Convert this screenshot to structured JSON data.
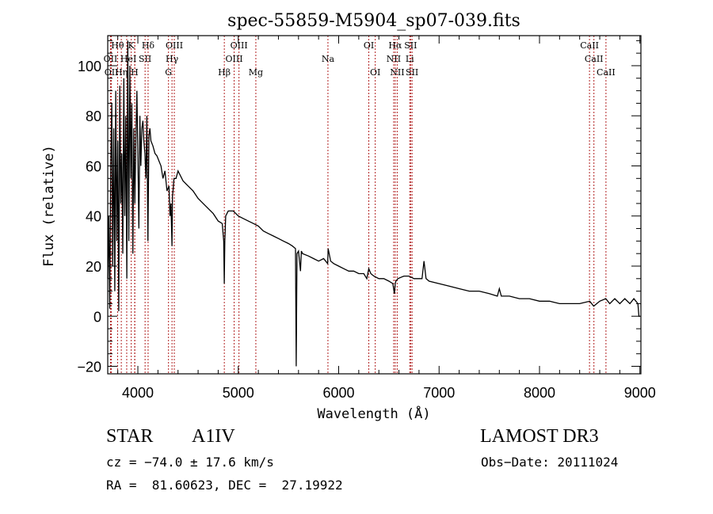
{
  "chart_data": {
    "type": "line",
    "title": "spec-55859-M5904_sp07-039.fits",
    "xlabel": "Wavelength (Å)",
    "ylabel": "Flux (relative)",
    "xlim": [
      3700,
      9010
    ],
    "ylim": [
      -23,
      112
    ],
    "xticks": [
      4000,
      5000,
      6000,
      7000,
      8000,
      9000
    ],
    "yticks": [
      -20,
      0,
      20,
      40,
      60,
      80,
      100
    ],
    "grid": false,
    "series": [
      {
        "name": "spectrum",
        "color": "#000000",
        "x": [
          3700,
          3710,
          3720,
          3730,
          3740,
          3750,
          3760,
          3770,
          3780,
          3790,
          3800,
          3810,
          3820,
          3830,
          3840,
          3850,
          3860,
          3870,
          3880,
          3890,
          3900,
          3910,
          3920,
          3930,
          3940,
          3950,
          3960,
          3970,
          3980,
          3990,
          4000,
          4010,
          4020,
          4030,
          4040,
          4050,
          4060,
          4070,
          4080,
          4090,
          4100,
          4110,
          4120,
          4130,
          4150,
          4170,
          4190,
          4210,
          4230,
          4250,
          4270,
          4290,
          4310,
          4320,
          4330,
          4340,
          4345,
          4350,
          4360,
          4380,
          4400,
          4450,
          4500,
          4550,
          4600,
          4650,
          4700,
          4750,
          4800,
          4840,
          4855,
          4861,
          4866,
          4875,
          4900,
          4950,
          5000,
          5050,
          5100,
          5150,
          5200,
          5250,
          5300,
          5350,
          5400,
          5450,
          5500,
          5540,
          5570,
          5577,
          5585,
          5600,
          5620,
          5628,
          5640,
          5700,
          5750,
          5800,
          5850,
          5890,
          5895,
          5920,
          5950,
          6000,
          6050,
          6100,
          6150,
          6200,
          6250,
          6280,
          6300,
          6320,
          6350,
          6400,
          6450,
          6500,
          6540,
          6555,
          6563,
          6570,
          6590,
          6650,
          6700,
          6750,
          6800,
          6830,
          6850,
          6870,
          6900,
          7000,
          7100,
          7200,
          7300,
          7400,
          7500,
          7580,
          7600,
          7620,
          7700,
          7800,
          7900,
          8000,
          8100,
          8200,
          8300,
          8400,
          8500,
          8540,
          8600,
          8660,
          8700,
          8750,
          8800,
          8850,
          8900,
          8940,
          8960,
          8980,
          8990,
          9000
        ],
        "y": [
          15,
          40,
          3,
          60,
          85,
          20,
          75,
          10,
          90,
          30,
          70,
          2,
          92,
          45,
          65,
          25,
          95,
          40,
          80,
          15,
          110,
          30,
          100,
          55,
          85,
          25,
          75,
          45,
          70,
          90,
          65,
          35,
          80,
          60,
          75,
          78,
          70,
          65,
          55,
          80,
          30,
          72,
          75,
          70,
          68,
          65,
          64,
          62,
          60,
          55,
          58,
          50,
          52,
          40,
          45,
          28,
          48,
          50,
          55,
          55,
          58,
          54,
          52,
          50,
          47,
          45,
          43,
          41,
          38,
          37,
          30,
          13,
          30,
          40,
          42,
          42,
          40,
          39,
          38,
          37,
          36,
          34,
          33,
          32,
          31,
          30,
          29,
          28,
          27,
          -20,
          25,
          26,
          18,
          26,
          25,
          24,
          23,
          22,
          23,
          21,
          27,
          22,
          21,
          20,
          19,
          18,
          18,
          17,
          17,
          15,
          19,
          17,
          16,
          15,
          15,
          14,
          13,
          9,
          13,
          14,
          15,
          16,
          16,
          15,
          15,
          15,
          22,
          15,
          14,
          13,
          12,
          11,
          10,
          10,
          9,
          8,
          11,
          8,
          8,
          7,
          7,
          6,
          6,
          5,
          5,
          5,
          6,
          4,
          6,
          7,
          5,
          7,
          5,
          7,
          5,
          7,
          6,
          5,
          0,
          0
        ]
      }
    ],
    "line_markers": {
      "color": "#b22222",
      "style": "dotted",
      "items": [
        {
          "label": "Hθ",
          "wavelength": 3798,
          "row": 1
        },
        {
          "label": "K",
          "wavelength": 3934,
          "row": 1
        },
        {
          "label": "Hδ",
          "wavelength": 4102,
          "row": 1
        },
        {
          "label": "OIII",
          "wavelength": 4363,
          "row": 1
        },
        {
          "label": "OIII",
          "wavelength": 5007,
          "row": 1
        },
        {
          "label": "OI",
          "wavelength": 6300,
          "row": 1
        },
        {
          "label": "Hα",
          "wavelength": 6563,
          "row": 1
        },
        {
          "label": "SII",
          "wavelength": 6717,
          "row": 1
        },
        {
          "label": "CaII",
          "wavelength": 8498,
          "row": 1
        },
        {
          "label": "OII",
          "wavelength": 3727,
          "row": 2
        },
        {
          "label": "He",
          "wavelength": 3889,
          "row": 2
        },
        {
          "label": "I",
          "wavelength": 3970,
          "row": 2
        },
        {
          "label": "SII",
          "wavelength": 4072,
          "row": 2
        },
        {
          "label": "Hγ",
          "wavelength": 4340,
          "row": 2
        },
        {
          "label": "OIII",
          "wavelength": 4959,
          "row": 2
        },
        {
          "label": "Na",
          "wavelength": 5893,
          "row": 2
        },
        {
          "label": "NII",
          "wavelength": 6548,
          "row": 2
        },
        {
          "label": "Li",
          "wavelength": 6708,
          "row": 2
        },
        {
          "label": "CaII",
          "wavelength": 8542,
          "row": 2
        },
        {
          "label": "OII",
          "wavelength": 3736,
          "row": 3
        },
        {
          "label": "Hη",
          "wavelength": 3835,
          "row": 3
        },
        {
          "label": "H",
          "wavelength": 3968,
          "row": 3
        },
        {
          "label": "G",
          "wavelength": 4305,
          "row": 3
        },
        {
          "label": "Hβ",
          "wavelength": 4861,
          "row": 3
        },
        {
          "label": "Mg",
          "wavelength": 5175,
          "row": 3
        },
        {
          "label": "OI",
          "wavelength": 6364,
          "row": 3
        },
        {
          "label": "NII",
          "wavelength": 6583,
          "row": 3
        },
        {
          "label": "SII",
          "wavelength": 6731,
          "row": 3
        },
        {
          "label": "CaII",
          "wavelength": 8662,
          "row": 3
        }
      ]
    }
  },
  "info": {
    "object_class": "STAR",
    "subclass": "A1IV",
    "redshift_line": "cz = −74.0 ± 17.6 km/s",
    "coords_line": "RA =  81.60623, DEC =  27.19922",
    "survey": "LAMOST DR3",
    "obs_date_line": "Obs−Date: 20111024"
  }
}
